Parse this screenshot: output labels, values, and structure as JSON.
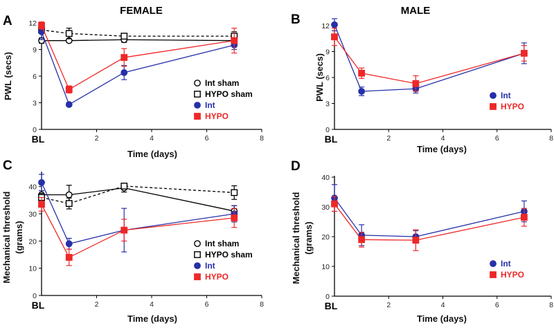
{
  "chart_data": [
    {
      "panel": "A",
      "title": "FEMALE",
      "type": "line",
      "xlabel": "Time (days)",
      "ylabel": "PWL (secs)",
      "xlim": [
        0,
        8
      ],
      "ylim": [
        0,
        12
      ],
      "xticks": [
        "2",
        "4",
        "6",
        "8"
      ],
      "yticks": [
        "0",
        "3",
        "6",
        "9",
        "12"
      ],
      "bl_label": "BL",
      "legend_position": "right-middle",
      "x": [
        0,
        1,
        3,
        7
      ],
      "series": [
        {
          "name": "Int sham",
          "color": "#000000",
          "marker": "circle-open",
          "dashed": false,
          "values": [
            10.0,
            10.0,
            10.1,
            10.0
          ],
          "err": [
            0.3,
            0.2,
            0.3,
            0.4
          ]
        },
        {
          "name": "HYPO sham",
          "color": "#000000",
          "marker": "square-open",
          "dashed": true,
          "values": [
            11.2,
            10.8,
            10.5,
            10.5
          ],
          "err": [
            0.4,
            0.6,
            0.3,
            0.5
          ]
        },
        {
          "name": "Int",
          "color": "#2630a8",
          "marker": "circle",
          "dashed": false,
          "values": [
            11.0,
            2.8,
            6.4,
            9.5
          ],
          "err": [
            0.9,
            0.2,
            0.8,
            0.5
          ]
        },
        {
          "name": "HYPO",
          "color": "#ee2828",
          "marker": "square",
          "dashed": false,
          "values": [
            11.7,
            4.5,
            8.1,
            10.0
          ],
          "err": [
            0.4,
            0.4,
            1.0,
            1.4
          ]
        }
      ]
    },
    {
      "panel": "B",
      "title": "MALE",
      "type": "line",
      "xlabel": "Time (days)",
      "ylabel": "PWL (secs)",
      "xlim": [
        0,
        8
      ],
      "ylim": [
        0,
        12
      ],
      "xticks": [
        "2",
        "4",
        "6",
        "8"
      ],
      "yticks": [
        "0",
        "3",
        "6",
        "9",
        "12"
      ],
      "bl_label": "BL",
      "legend_position": "bottom-right",
      "x": [
        0,
        1,
        3,
        7
      ],
      "series": [
        {
          "name": "Int",
          "color": "#2630a8",
          "marker": "circle",
          "dashed": false,
          "values": [
            12.1,
            4.4,
            4.7,
            8.8
          ],
          "err": [
            0.7,
            0.5,
            0.5,
            1.2
          ]
        },
        {
          "name": "HYPO",
          "color": "#ee2828",
          "marker": "square",
          "dashed": false,
          "values": [
            10.7,
            6.5,
            5.3,
            8.8
          ],
          "err": [
            1.0,
            0.6,
            0.9,
            0.9
          ]
        }
      ]
    },
    {
      "panel": "C",
      "type": "line",
      "xlabel": "Time (days)",
      "ylabel": "Mechanical threshold\n(grams)",
      "xlim": [
        0,
        8
      ],
      "ylim": [
        0,
        45
      ],
      "xticks": [
        "2",
        "4",
        "6",
        "8"
      ],
      "yticks": [
        "0",
        "10",
        "20",
        "30",
        "40"
      ],
      "bl_label": "BL",
      "legend_position": "right-middle",
      "x": [
        0,
        1,
        3,
        7
      ],
      "series": [
        {
          "name": "Int sham",
          "color": "#000000",
          "marker": "circle-open",
          "dashed": false,
          "values": [
            37.0,
            37.0,
            39.5,
            31.0
          ],
          "err": [
            1.5,
            3.5,
            1.5,
            2.0
          ]
        },
        {
          "name": "HYPO sham",
          "color": "#000000",
          "marker": "square-open",
          "dashed": true,
          "values": [
            36.0,
            33.8,
            40.2,
            37.8
          ],
          "err": [
            1.5,
            2.0,
            0.8,
            2.5
          ]
        },
        {
          "name": "Int",
          "color": "#2630a8",
          "marker": "circle",
          "dashed": false,
          "values": [
            41.5,
            19.0,
            24.0,
            30.0
          ],
          "err": [
            3.0,
            2.0,
            8.0,
            3.0
          ]
        },
        {
          "name": "HYPO",
          "color": "#ee2828",
          "marker": "square",
          "dashed": false,
          "values": [
            33.5,
            14.0,
            24.0,
            28.5
          ],
          "err": [
            2.5,
            3.0,
            4.0,
            3.5
          ]
        }
      ]
    },
    {
      "panel": "D",
      "type": "line",
      "xlabel": "Time (days)",
      "ylabel": "Mechanical threshold\n(grams)",
      "xlim": [
        0,
        8
      ],
      "ylim": [
        0,
        40
      ],
      "xticks": [
        "2",
        "4",
        "6",
        "8"
      ],
      "yticks": [
        "0",
        "10",
        "20",
        "30",
        "40"
      ],
      "bl_label": "BL",
      "legend_position": "bottom-right",
      "x": [
        0,
        1,
        3,
        7
      ],
      "series": [
        {
          "name": "Int",
          "color": "#2630a8",
          "marker": "circle",
          "dashed": false,
          "values": [
            33.0,
            20.5,
            20.0,
            28.5
          ],
          "err": [
            4.5,
            3.5,
            2.0,
            3.5
          ]
        },
        {
          "name": "HYPO",
          "color": "#ee2828",
          "marker": "square",
          "dashed": false,
          "values": [
            31.0,
            19.0,
            18.8,
            26.5
          ],
          "err": [
            2.5,
            2.5,
            3.5,
            3.0
          ]
        }
      ]
    }
  ]
}
